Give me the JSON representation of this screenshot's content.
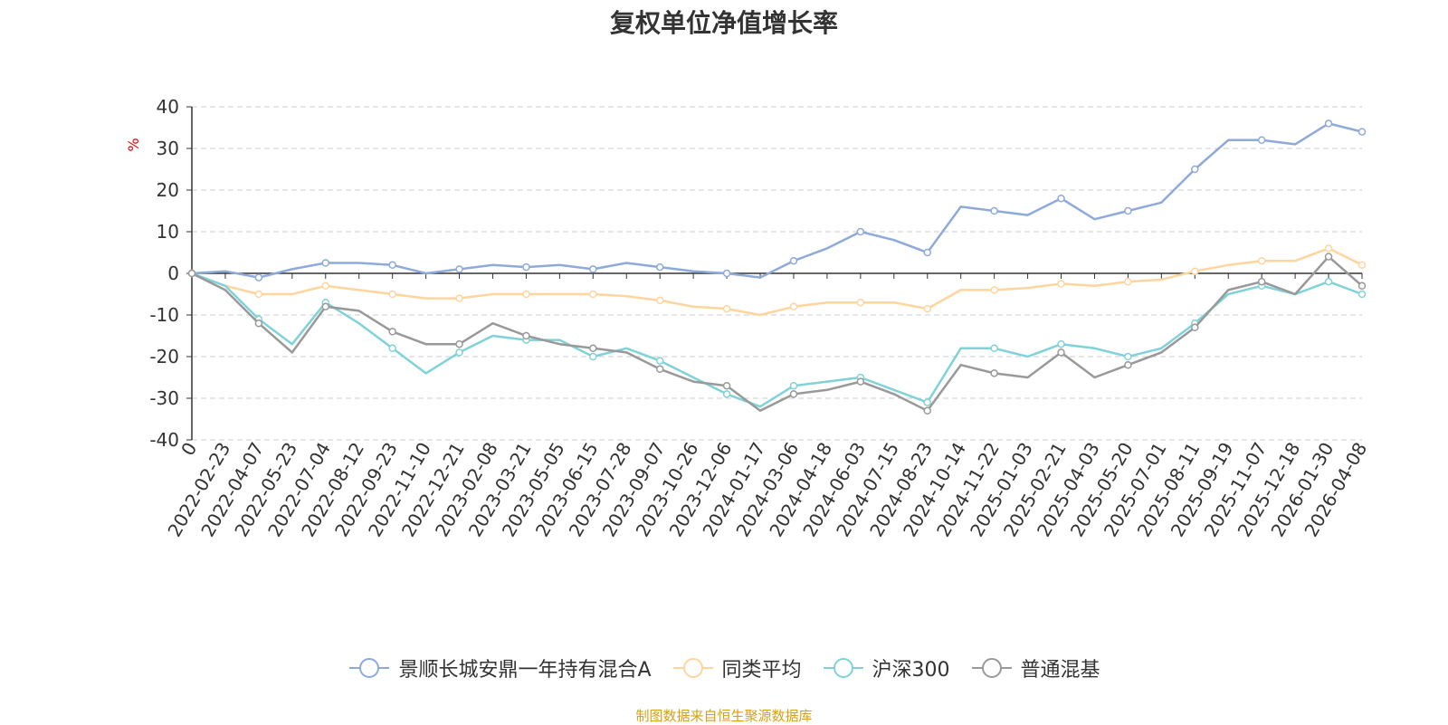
{
  "chart_data": {
    "type": "line",
    "title": "复权单位净值增长率",
    "ylabel": "%",
    "ylim": [
      -40,
      40
    ],
    "yticks": [
      -40,
      -30,
      -20,
      -10,
      0,
      10,
      20,
      30,
      40
    ],
    "x": [
      "0",
      "2022-02-23",
      "2022-04-07",
      "2022-05-23",
      "2022-07-04",
      "2022-08-12",
      "2022-09-23",
      "2022-11-10",
      "2022-12-21",
      "2023-02-08",
      "2023-03-21",
      "2023-05-05",
      "2023-06-15",
      "2023-07-28",
      "2023-09-07",
      "2023-10-26",
      "2023-12-06",
      "2024-01-17",
      "2024-03-06",
      "2024-04-18",
      "2024-06-03",
      "2024-07-15",
      "2024-08-23",
      "2024-10-14",
      "2024-11-22",
      "2025-01-03",
      "2025-02-21",
      "2025-04-03",
      "2025-05-20",
      "2025-07-01",
      "2025-08-11",
      "2025-09-19",
      "2025-11-07",
      "2025-12-18",
      "2026-01-30",
      "2026-04-08"
    ],
    "grid": true,
    "legend_position": "bottom",
    "series": [
      {
        "name": "景顺长城安鼎一年持有混合A",
        "color": "#8eaadb",
        "values": [
          0,
          0.5,
          -1,
          1,
          2.5,
          2.5,
          2,
          0,
          1,
          2,
          1.5,
          2,
          1,
          2.5,
          1.5,
          0.5,
          0,
          -1,
          3,
          6,
          10,
          8,
          5,
          16,
          15,
          14,
          18,
          13,
          15,
          17,
          25,
          32,
          32,
          31,
          36,
          34
        ]
      },
      {
        "name": "同类平均",
        "color": "#ffd59e",
        "values": [
          0,
          -3,
          -5,
          -5,
          -3,
          -4,
          -5,
          -6,
          -6,
          -5,
          -5,
          -5,
          -5,
          -5.5,
          -6.5,
          -8,
          -8.5,
          -10,
          -8,
          -7,
          -7,
          -7,
          -8.5,
          -4,
          -4,
          -3.5,
          -2.5,
          -3,
          -2,
          -1.5,
          0.5,
          2,
          3,
          3,
          6,
          2
        ]
      },
      {
        "name": "沪深300",
        "color": "#7fd3d8",
        "values": [
          0,
          -3,
          -11,
          -17,
          -7,
          -12,
          -18,
          -24,
          -19,
          -15,
          -16,
          -16,
          -20,
          -18,
          -21,
          -25,
          -29,
          -32,
          -27,
          -26,
          -25,
          -28,
          -31,
          -18,
          -18,
          -20,
          -17,
          -18,
          -20,
          -18,
          -12,
          -5,
          -3,
          -5,
          -2,
          -5
        ]
      },
      {
        "name": "普通混基",
        "color": "#999999",
        "values": [
          0,
          -4,
          -12,
          -19,
          -8,
          -9,
          -14,
          -17,
          -17,
          -12,
          -15,
          -17,
          -18,
          -19,
          -23,
          -26,
          -27,
          -33,
          -29,
          -28,
          -26,
          -29,
          -33,
          -22,
          -24,
          -25,
          -19,
          -25,
          -22,
          -19,
          -13,
          -4,
          -2,
          -5,
          4,
          -3
        ]
      }
    ]
  },
  "source_note": "制图数据来自恒生聚源数据库"
}
